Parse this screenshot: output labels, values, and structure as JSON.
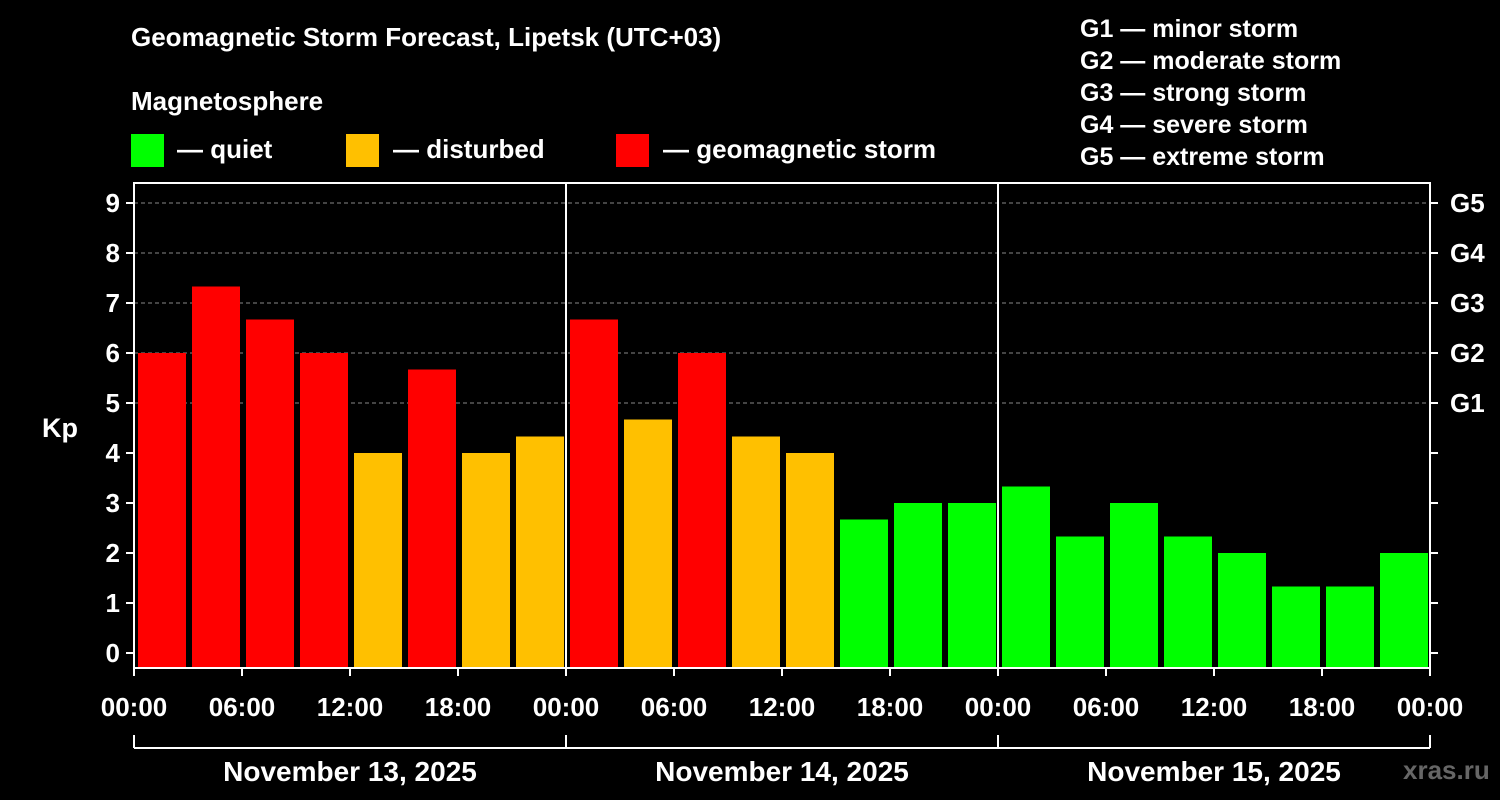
{
  "title": "Geomagnetic Storm Forecast, Lipetsk (UTC+03)",
  "legend": {
    "heading": "Magnetosphere",
    "items": [
      {
        "label": "— quiet",
        "color": "#00ff00"
      },
      {
        "label": "— disturbed",
        "color": "#ffc000"
      },
      {
        "label": "— geomagnetic storm",
        "color": "#ff0000"
      }
    ]
  },
  "storm_levels": [
    "G1 — minor storm",
    "G2 — moderate storm",
    "G3 — strong storm",
    "G4 — severe storm",
    "G5 — extreme storm"
  ],
  "watermark": "xras.ru",
  "chart_data": {
    "type": "bar",
    "title": "Geomagnetic Storm Forecast, Lipetsk (UTC+03)",
    "ylabel": "Kp",
    "ylim": [
      -0.3,
      9.4
    ],
    "y_ticks": [
      0,
      1,
      2,
      3,
      4,
      5,
      6,
      7,
      8,
      9
    ],
    "right_axis_labels": [
      {
        "kp": 5,
        "label": "G1"
      },
      {
        "kp": 6,
        "label": "G2"
      },
      {
        "kp": 7,
        "label": "G3"
      },
      {
        "kp": 8,
        "label": "G4"
      },
      {
        "kp": 9,
        "label": "G5"
      }
    ],
    "x_tick_labels": [
      "00:00",
      "06:00",
      "12:00",
      "18:00",
      "00:00",
      "06:00",
      "12:00",
      "18:00",
      "00:00",
      "06:00",
      "12:00",
      "18:00",
      "00:00"
    ],
    "days": [
      "November 13, 2025",
      "November 14, 2025",
      "November 15, 2025"
    ],
    "intervals_hours": 3,
    "values": [
      6.0,
      7.33,
      6.67,
      6.0,
      4.0,
      5.67,
      4.0,
      4.33,
      6.67,
      4.67,
      6.0,
      4.33,
      4.0,
      2.67,
      3.0,
      3.0,
      3.33,
      2.33,
      3.0,
      2.33,
      2.0,
      1.33,
      1.33,
      2.0
    ],
    "color_thresholds": {
      "quiet_below": 4,
      "storm_from": 5
    },
    "grid": "dashed at Kp 5-9"
  }
}
